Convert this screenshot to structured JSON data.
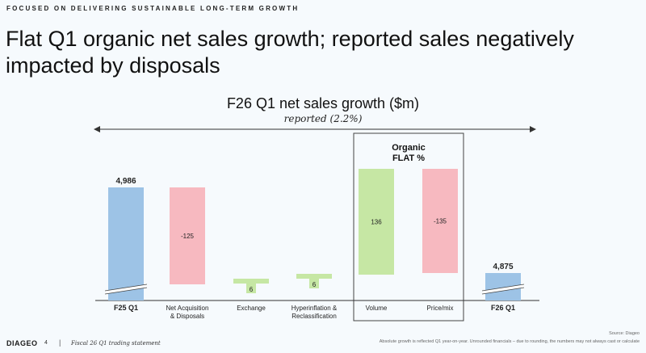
{
  "header": {
    "kicker": "FOCUSED ON DELIVERING SUSTAINABLE LONG-TERM GROWTH",
    "headline": "Flat Q1 organic net sales growth; reported sales negatively impacted by disposals"
  },
  "colors": {
    "blue": "#9dc3e6",
    "pink": "#f7b9c0",
    "green": "#c6e7a4",
    "axis": "#333333"
  },
  "chart_data": {
    "type": "waterfall",
    "title": "F26 Q1 net sales growth ($m)",
    "subtitle": "reported (2.2%)",
    "organic_box": {
      "line1": "Organic",
      "line2": "FLAT %"
    },
    "unit": "$m",
    "bars": [
      {
        "category": "F25 Q1",
        "value": 4986,
        "label": "4,986",
        "kind": "total",
        "color": "blue",
        "bold": true
      },
      {
        "category": "Net Acquisition\n& Disposals",
        "value": -125,
        "label": "-125",
        "kind": "delta",
        "color": "pink",
        "bold": false
      },
      {
        "category": "Exchange",
        "value": 6,
        "label": "6",
        "kind": "delta",
        "color": "green",
        "bold": false
      },
      {
        "category": "Hyperinflation &\nReclassification",
        "value": 6,
        "label": "6",
        "kind": "delta",
        "color": "green",
        "bold": false
      },
      {
        "category": "Volume",
        "value": 136,
        "label": "136",
        "kind": "delta",
        "color": "green",
        "bold": false
      },
      {
        "category": "Price/mix",
        "value": -135,
        "label": "-135",
        "kind": "delta",
        "color": "pink",
        "bold": false
      },
      {
        "category": "F26 Q1",
        "value": 4875,
        "label": "4,875",
        "kind": "total",
        "color": "blue",
        "bold": true
      }
    ]
  },
  "footer": {
    "logo": "DIAGEO",
    "page": "4",
    "separator": "|",
    "doc": "Fiscal 26 Q1 trading statement",
    "source": "Source: Diageo",
    "note": "Absolute growth is reflected Q1 year-on-year. Unrounded financials – due to rounding, the numbers may not always cast or calculate"
  }
}
